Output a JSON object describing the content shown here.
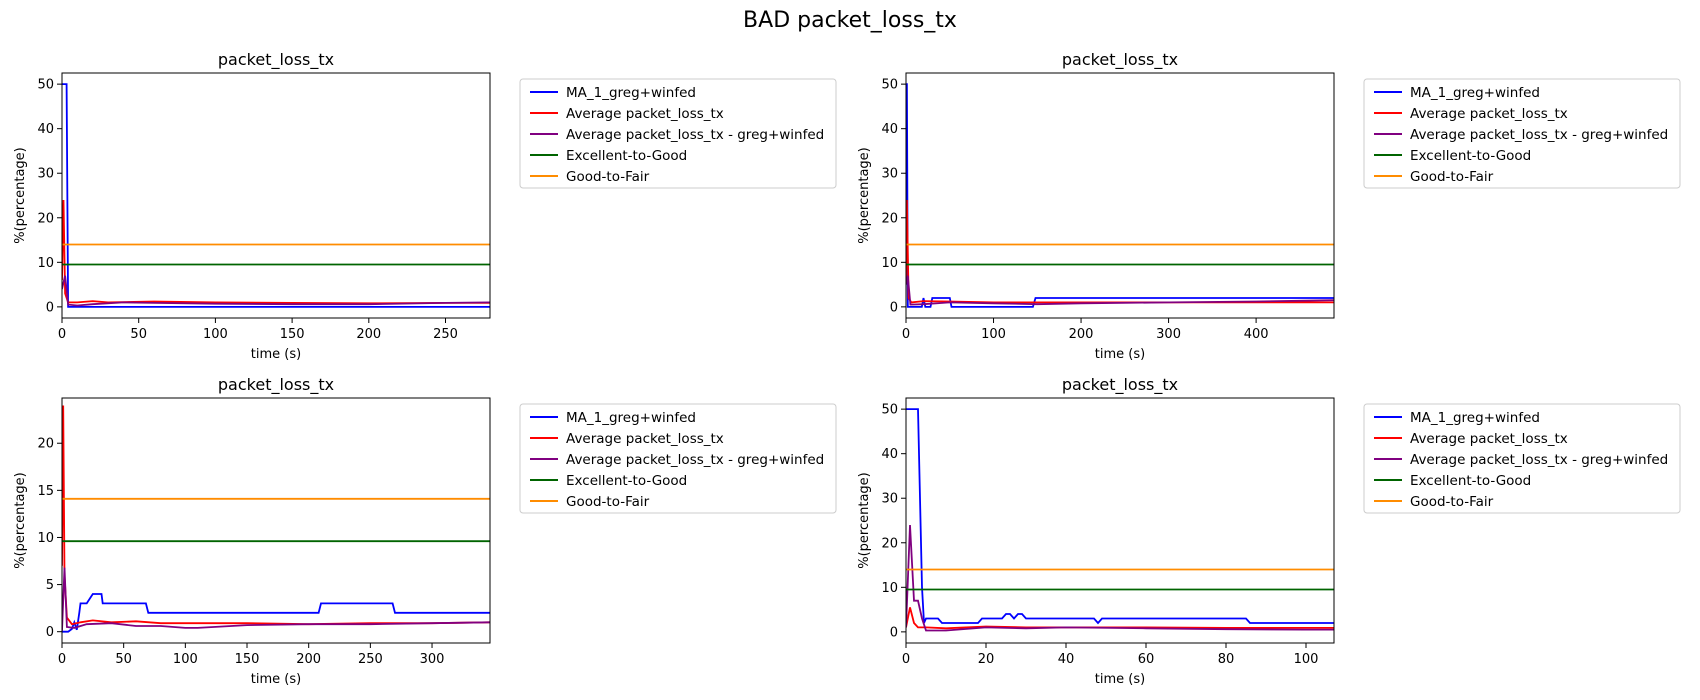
{
  "figure_title": "BAD packet_loss_tx",
  "colors": {
    "MA_1": "#0000ff",
    "avg": "#ff0000",
    "avg_greg": "#800080",
    "excellent_good": "#006400",
    "good_fair": "#ff8c00"
  },
  "chart_data": [
    {
      "type": "line",
      "title": "packet_loss_tx",
      "xlabel": "time (s)",
      "ylabel": "%(percentage)",
      "xlim": [
        0,
        279
      ],
      "ylim": [
        -2.5,
        52.5
      ],
      "xticks": [
        0,
        50,
        100,
        150,
        200,
        250
      ],
      "yticks": [
        0,
        10,
        20,
        30,
        40,
        50
      ],
      "legend": "outside-right-top",
      "series": [
        {
          "name": "MA_1_greg+winfed",
          "color": "#0000ff",
          "x": [
            0,
            1,
            3,
            4,
            5,
            279
          ],
          "y": [
            50,
            50,
            50,
            0,
            0,
            0
          ]
        },
        {
          "name": "Average packet_loss_tx",
          "color": "#ff0000",
          "x": [
            0,
            1,
            2,
            4,
            10,
            20,
            30,
            60,
            100,
            150,
            200,
            250,
            279
          ],
          "y": [
            6,
            24,
            3,
            1,
            1,
            1.3,
            1,
            1.2,
            1,
            0.9,
            0.8,
            0.9,
            0.9
          ]
        },
        {
          "name": "Average packet_loss_tx - greg+winfed",
          "color": "#800080",
          "x": [
            0,
            2,
            4,
            10,
            20,
            40,
            60,
            100,
            150,
            200,
            250,
            279
          ],
          "y": [
            4,
            7,
            0.5,
            0.3,
            0.6,
            1,
            0.9,
            0.7,
            0.6,
            0.6,
            0.9,
            1
          ]
        },
        {
          "name": "Excellent-to-Good",
          "color": "#006400",
          "x": [
            0,
            279
          ],
          "y": [
            9.5,
            9.5
          ]
        },
        {
          "name": "Good-to-Fair",
          "color": "#ff8c00",
          "x": [
            0,
            279
          ],
          "y": [
            14,
            14
          ]
        }
      ]
    },
    {
      "type": "line",
      "title": "packet_loss_tx",
      "xlabel": "time (s)",
      "ylabel": "%(percentage)",
      "xlim": [
        0,
        489
      ],
      "ylim": [
        -2.5,
        52.5
      ],
      "xticks": [
        0,
        100,
        200,
        300,
        400
      ],
      "yticks": [
        0,
        10,
        20,
        30,
        40,
        50
      ],
      "legend": "outside-right-top",
      "series": [
        {
          "name": "MA_1_greg+winfed",
          "color": "#0000ff",
          "x": [
            0,
            1,
            2,
            4,
            18,
            20,
            22,
            28,
            30,
            50,
            52,
            55,
            60,
            145,
            148,
            450,
            455,
            489
          ],
          "y": [
            50,
            50,
            0,
            0,
            0,
            2,
            0,
            0,
            2,
            2,
            0,
            0,
            0,
            0,
            2,
            2,
            2,
            2
          ]
        },
        {
          "name": "Average packet_loss_tx",
          "color": "#ff0000",
          "x": [
            0,
            1,
            3,
            6,
            20,
            50,
            100,
            200,
            300,
            400,
            489
          ],
          "y": [
            6,
            24,
            2,
            1,
            1.3,
            1.2,
            1,
            1,
            1,
            1,
            1
          ]
        },
        {
          "name": "Average packet_loss_tx - greg+winfed",
          "color": "#800080",
          "x": [
            0,
            2,
            5,
            20,
            50,
            100,
            150,
            200,
            300,
            400,
            489
          ],
          "y": [
            5,
            7,
            0.5,
            0.6,
            1,
            0.8,
            0.6,
            0.8,
            1,
            1.2,
            1.5
          ]
        },
        {
          "name": "Excellent-to-Good",
          "color": "#006400",
          "x": [
            0,
            489
          ],
          "y": [
            9.5,
            9.5
          ]
        },
        {
          "name": "Good-to-Fair",
          "color": "#ff8c00",
          "x": [
            0,
            489
          ],
          "y": [
            14,
            14
          ]
        }
      ]
    },
    {
      "type": "line",
      "title": "packet_loss_tx",
      "xlabel": "time (s)",
      "ylabel": "%(percentage)",
      "xlim": [
        0,
        347
      ],
      "ylim": [
        -1.2,
        24.8
      ],
      "xticks": [
        0,
        50,
        100,
        150,
        200,
        250,
        300
      ],
      "yticks": [
        0,
        5,
        10,
        15,
        20
      ],
      "legend": "outside-right-top",
      "series": [
        {
          "name": "MA_1_greg+winfed",
          "color": "#0000ff",
          "x": [
            0,
            5,
            8,
            10,
            12,
            14,
            15,
            20,
            25,
            30,
            32,
            33,
            35,
            68,
            70,
            208,
            210,
            268,
            270,
            347
          ],
          "y": [
            0,
            0,
            0.3,
            1,
            0.2,
            2,
            3,
            3,
            4,
            4,
            4,
            3,
            3,
            3,
            2,
            2,
            3,
            3,
            2,
            2
          ]
        },
        {
          "name": "Average packet_loss_tx",
          "color": "#ff0000",
          "x": [
            0,
            1,
            2,
            4,
            8,
            15,
            25,
            40,
            60,
            80,
            100,
            150,
            200,
            250,
            300,
            347
          ],
          "y": [
            7,
            24,
            6,
            1.5,
            0.8,
            1,
            1.2,
            1,
            1.1,
            0.9,
            0.9,
            0.9,
            0.8,
            0.9,
            0.9,
            1
          ]
        },
        {
          "name": "Average packet_loss_tx - greg+winfed",
          "color": "#800080",
          "x": [
            0,
            2,
            4,
            10,
            20,
            40,
            60,
            80,
            100,
            110,
            150,
            200,
            250,
            300,
            347
          ],
          "y": [
            0.1,
            6.8,
            0.5,
            0.4,
            0.8,
            0.9,
            0.6,
            0.6,
            0.4,
            0.4,
            0.7,
            0.8,
            0.8,
            0.9,
            1
          ]
        },
        {
          "name": "Excellent-to-Good",
          "color": "#006400",
          "x": [
            0,
            347
          ],
          "y": [
            9.6,
            9.6
          ]
        },
        {
          "name": "Good-to-Fair",
          "color": "#ff8c00",
          "x": [
            0,
            347
          ],
          "y": [
            14.1,
            14.1
          ]
        }
      ]
    },
    {
      "type": "line",
      "title": "packet_loss_tx",
      "xlabel": "time (s)",
      "ylabel": "%(percentage)",
      "xlim": [
        0,
        107
      ],
      "ylim": [
        -2.5,
        52.5
      ],
      "xticks": [
        0,
        20,
        40,
        60,
        80,
        100
      ],
      "yticks": [
        0,
        10,
        20,
        30,
        40,
        50
      ],
      "legend": "outside-right-top",
      "series": [
        {
          "name": "MA_1_greg+winfed",
          "color": "#0000ff",
          "x": [
            0,
            1,
            3,
            4,
            4.5,
            5,
            8,
            9,
            18,
            19,
            24,
            25,
            26,
            27,
            28,
            29,
            30,
            47,
            48,
            49,
            85,
            86,
            107
          ],
          "y": [
            50,
            50,
            50,
            10,
            2,
            3,
            3,
            2,
            2,
            3,
            3,
            4,
            4,
            3,
            4,
            4,
            3,
            3,
            2,
            3,
            3,
            2,
            2
          ]
        },
        {
          "name": "Average packet_loss_tx",
          "color": "#ff0000",
          "x": [
            0,
            1,
            2,
            3,
            4,
            5,
            10,
            20,
            30,
            40,
            60,
            80,
            100,
            107
          ],
          "y": [
            1,
            5.5,
            2,
            1,
            1,
            1,
            0.8,
            1.2,
            1,
            1,
            1,
            0.9,
            0.9,
            0.9
          ]
        },
        {
          "name": "Average packet_loss_tx - greg+winfed",
          "color": "#800080",
          "x": [
            0,
            1,
            2,
            3,
            4,
            5,
            10,
            20,
            30,
            40,
            60,
            80,
            100,
            107
          ],
          "y": [
            1,
            24,
            7,
            7,
            3,
            0.3,
            0.3,
            1,
            0.8,
            1,
            0.8,
            0.6,
            0.5,
            0.5
          ]
        },
        {
          "name": "Excellent-to-Good",
          "color": "#006400",
          "x": [
            0,
            107
          ],
          "y": [
            9.5,
            9.5
          ]
        },
        {
          "name": "Good-to-Fair",
          "color": "#ff8c00",
          "x": [
            0,
            107
          ],
          "y": [
            14,
            14
          ]
        }
      ]
    }
  ]
}
